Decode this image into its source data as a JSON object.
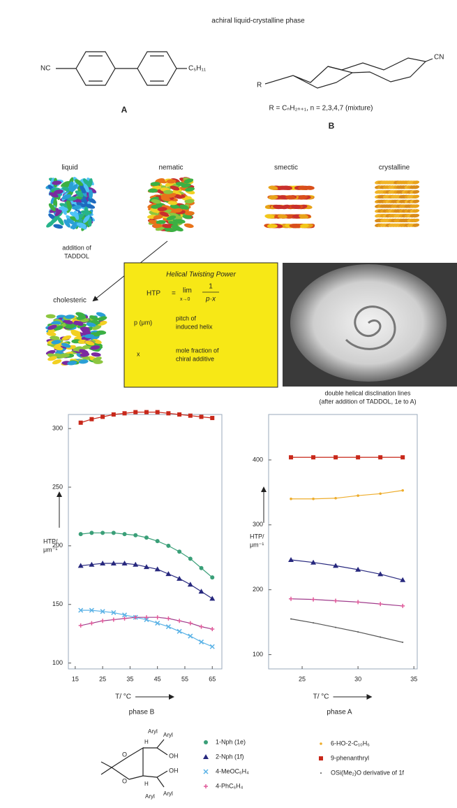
{
  "header": {
    "title": "achiral liquid-crystalline phase"
  },
  "molecule_a": {
    "left_group": "NC",
    "right_group": "C₅H₁₁",
    "label": "A"
  },
  "molecule_b": {
    "r_group": "R",
    "right_group": "CN",
    "formula": "R = CₙH₂ₙ₊₁, n = 2,3,4,7 (mixture)",
    "label": "B"
  },
  "phases": [
    "liquid",
    "nematic",
    "smectic",
    "crystalline"
  ],
  "addition_note": [
    "addition of",
    "TADDOL"
  ],
  "cholesteric": "cholesteric",
  "htp_box": {
    "title": "Helical Twisting Power",
    "lhs": "HTP",
    "equals": "=",
    "lim": "lim",
    "lim_sub": "x→0",
    "numerator": "1",
    "denominator": "p·x",
    "rows": [
      {
        "symbol": "p (μm)",
        "text": [
          "pitch of",
          "induced helix"
        ]
      },
      {
        "symbol": "x",
        "text": [
          "mole fraction of",
          "chiral additive"
        ]
      }
    ]
  },
  "photo_caption": [
    "double helical disclination lines",
    "(after addition of TADDOL, 1e to A)"
  ],
  "chart_data": [
    {
      "type": "line",
      "x": [
        17,
        21,
        25,
        29,
        33,
        37,
        41,
        45,
        49,
        53,
        57,
        61,
        65
      ],
      "series": [
        {
          "name": "1-Nph (1e)",
          "color": "#3a9f78",
          "marker": "circle",
          "values": [
            210,
            211,
            211,
            211,
            210,
            209,
            207,
            204,
            200,
            195,
            189,
            181,
            173
          ]
        },
        {
          "name": "2-Nph (1f)",
          "color": "#27287e",
          "marker": "triangle",
          "values": [
            183,
            184,
            185,
            185,
            185,
            184,
            182,
            180,
            176,
            172,
            167,
            161,
            155
          ]
        },
        {
          "name": "4-MeOC₆H₄",
          "color": "#5ab2e6",
          "marker": "cross",
          "values": [
            145,
            145,
            144,
            143,
            141,
            139,
            137,
            134,
            131,
            127,
            123,
            118,
            114
          ]
        },
        {
          "name": "4-PhC₆H₄",
          "color": "#a03c8c",
          "marker": "plus",
          "values": [
            132,
            134,
            136,
            137,
            138,
            139,
            139,
            139,
            138,
            136,
            134,
            131,
            129
          ]
        },
        {
          "name": "9-phenanthryl",
          "color": "#c8281a",
          "marker": "square",
          "values": [
            305,
            308,
            310,
            312,
            313,
            314,
            314,
            314,
            313,
            312,
            311,
            310,
            309
          ]
        }
      ],
      "xlim": [
        12.5,
        68.5
      ],
      "ylim": [
        95,
        312
      ],
      "xticks": [
        15,
        25,
        35,
        45,
        55,
        65
      ],
      "yticks": [
        100,
        150,
        200,
        250,
        300
      ],
      "y_label": [
        "HTP/",
        "μm⁻¹"
      ],
      "x_label": "T/ °C",
      "x_sublabel": "phase B"
    },
    {
      "type": "line",
      "x": [
        24,
        26,
        28,
        30,
        32,
        34
      ],
      "series": [
        {
          "name": "9-phenanthryl",
          "color": "#c8281a",
          "marker": "square",
          "values": [
            404,
            404,
            404,
            404,
            404,
            404
          ]
        },
        {
          "name": "6-HO-2-C₁₀H₆",
          "color": "#eead2c",
          "marker": "dot",
          "values": [
            340,
            340,
            341,
            345,
            348,
            353
          ]
        },
        {
          "name": "2-Nph (1f)",
          "color": "#27287e",
          "marker": "triangle",
          "values": [
            246,
            242,
            237,
            231,
            224,
            215
          ]
        },
        {
          "name": "4-PhC₆H₄",
          "color": "#a03c8c",
          "marker": "plus",
          "values": [
            186,
            185,
            183,
            181,
            178,
            175
          ]
        },
        {
          "name": "OSi(Me₂)O derivative of 1f",
          "color": "#555555",
          "marker": "tick",
          "values": [
            155,
            149,
            142,
            135,
            127,
            119
          ]
        }
      ],
      "xlim": [
        22,
        35.3
      ],
      "ylim": [
        78,
        470
      ],
      "xticks": [
        25,
        30,
        35
      ],
      "yticks": [
        100,
        200,
        300,
        400
      ],
      "y_label": [
        "HTP/",
        "μm⁻¹"
      ],
      "x_label": "T/ °C",
      "x_sublabel": "phase A"
    }
  ],
  "legend_structure": {
    "labels": [
      "Aryl",
      "Aryl",
      "H",
      "OH",
      "OH",
      "H",
      "Aryl",
      "Aryl",
      "O",
      "O"
    ]
  }
}
